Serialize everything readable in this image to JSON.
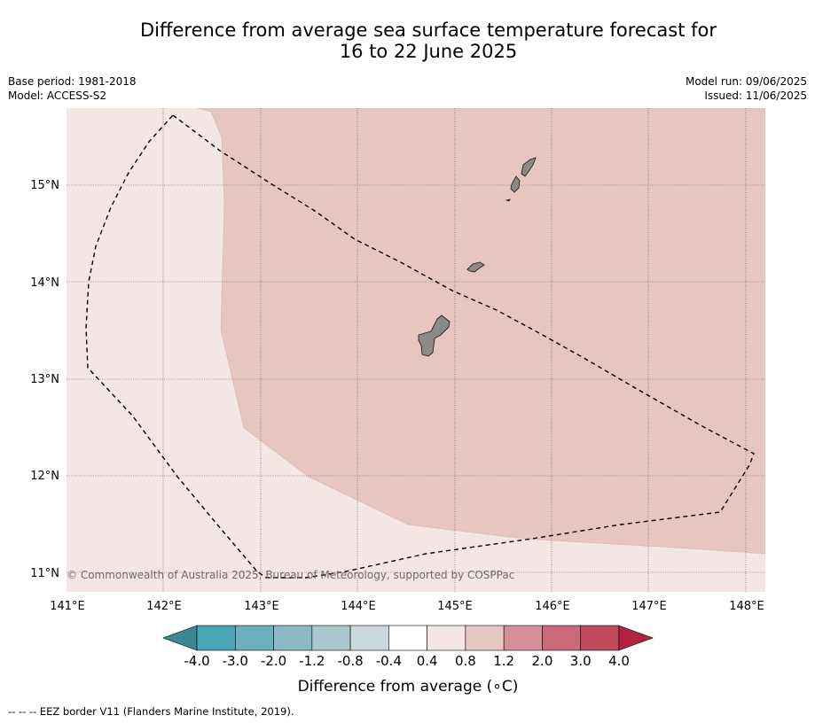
{
  "title": {
    "line1": "Difference from average sea surface temperature forecast for",
    "line2": "16 to 22 June 2025"
  },
  "meta": {
    "base_period": "Base period: 1981-2018",
    "model": "Model: ACCESS-S2",
    "model_run": "Model run: 09/06/2025",
    "issued": "Issued: 11/06/2025"
  },
  "map": {
    "lon_ticks": [
      "141°E",
      "142°E",
      "143°E",
      "144°E",
      "145°E",
      "146°E",
      "147°E",
      "148°E"
    ],
    "lat_ticks": [
      "15°N",
      "14°N",
      "13°N",
      "12°N",
      "11°N"
    ],
    "copyright": "© Commonwealth of Australia 2025, Bureau of Meteorology, supported by COSPPac",
    "colors": {
      "anomaly_0_4_to_0_8": "#f4e6e4",
      "anomaly_0_8_to_1_2": "#e7c6c1",
      "land": "#8c8a87"
    }
  },
  "colorbar": {
    "tick_labels": [
      "-4.0",
      "-3.0",
      "-2.0",
      "-1.2",
      "-0.8",
      "-0.4",
      "0.4",
      "0.8",
      "1.2",
      "2.0",
      "3.0",
      "4.0"
    ],
    "colors": [
      "#3f8693",
      "#4aa5b5",
      "#6cb0bf",
      "#8ab8c4",
      "#a8c6cc",
      "#ccd9dc",
      "#ffffff",
      "#f4e6e4",
      "#e7c6c1",
      "#d6909b",
      "#cb6a79",
      "#c04a5b",
      "#b02341"
    ],
    "label": "Difference from average (",
    "label_unit": "∘C)"
  },
  "footnote": "--  --  -- EEZ border V11 (Flanders Marine Institute, 2019)."
}
